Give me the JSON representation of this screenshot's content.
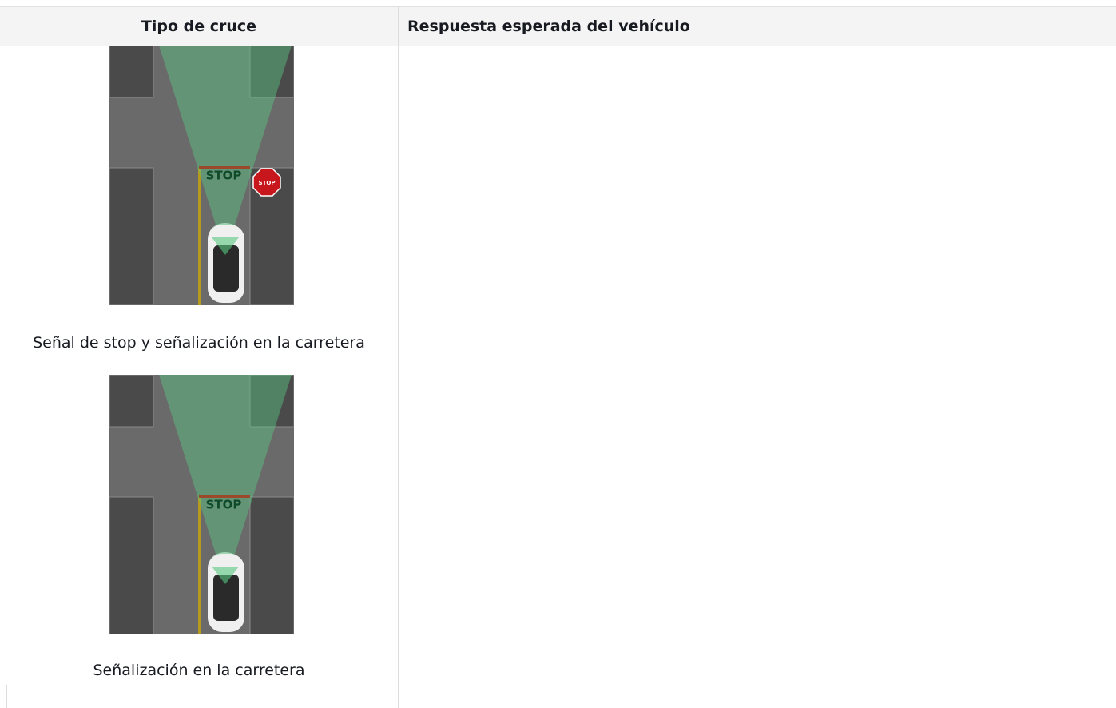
{
  "table": {
    "header": [
      "Tipo de cruce",
      "Respuesta esperada del vehículo"
    ],
    "rows": [
      {
        "caption": "Señal de stop y señalización en la carretera",
        "road_marking": "STOP",
        "sign": "STOP"
      },
      {
        "caption": "Señalización en la carretera",
        "road_marking": "STOP"
      }
    ]
  }
}
